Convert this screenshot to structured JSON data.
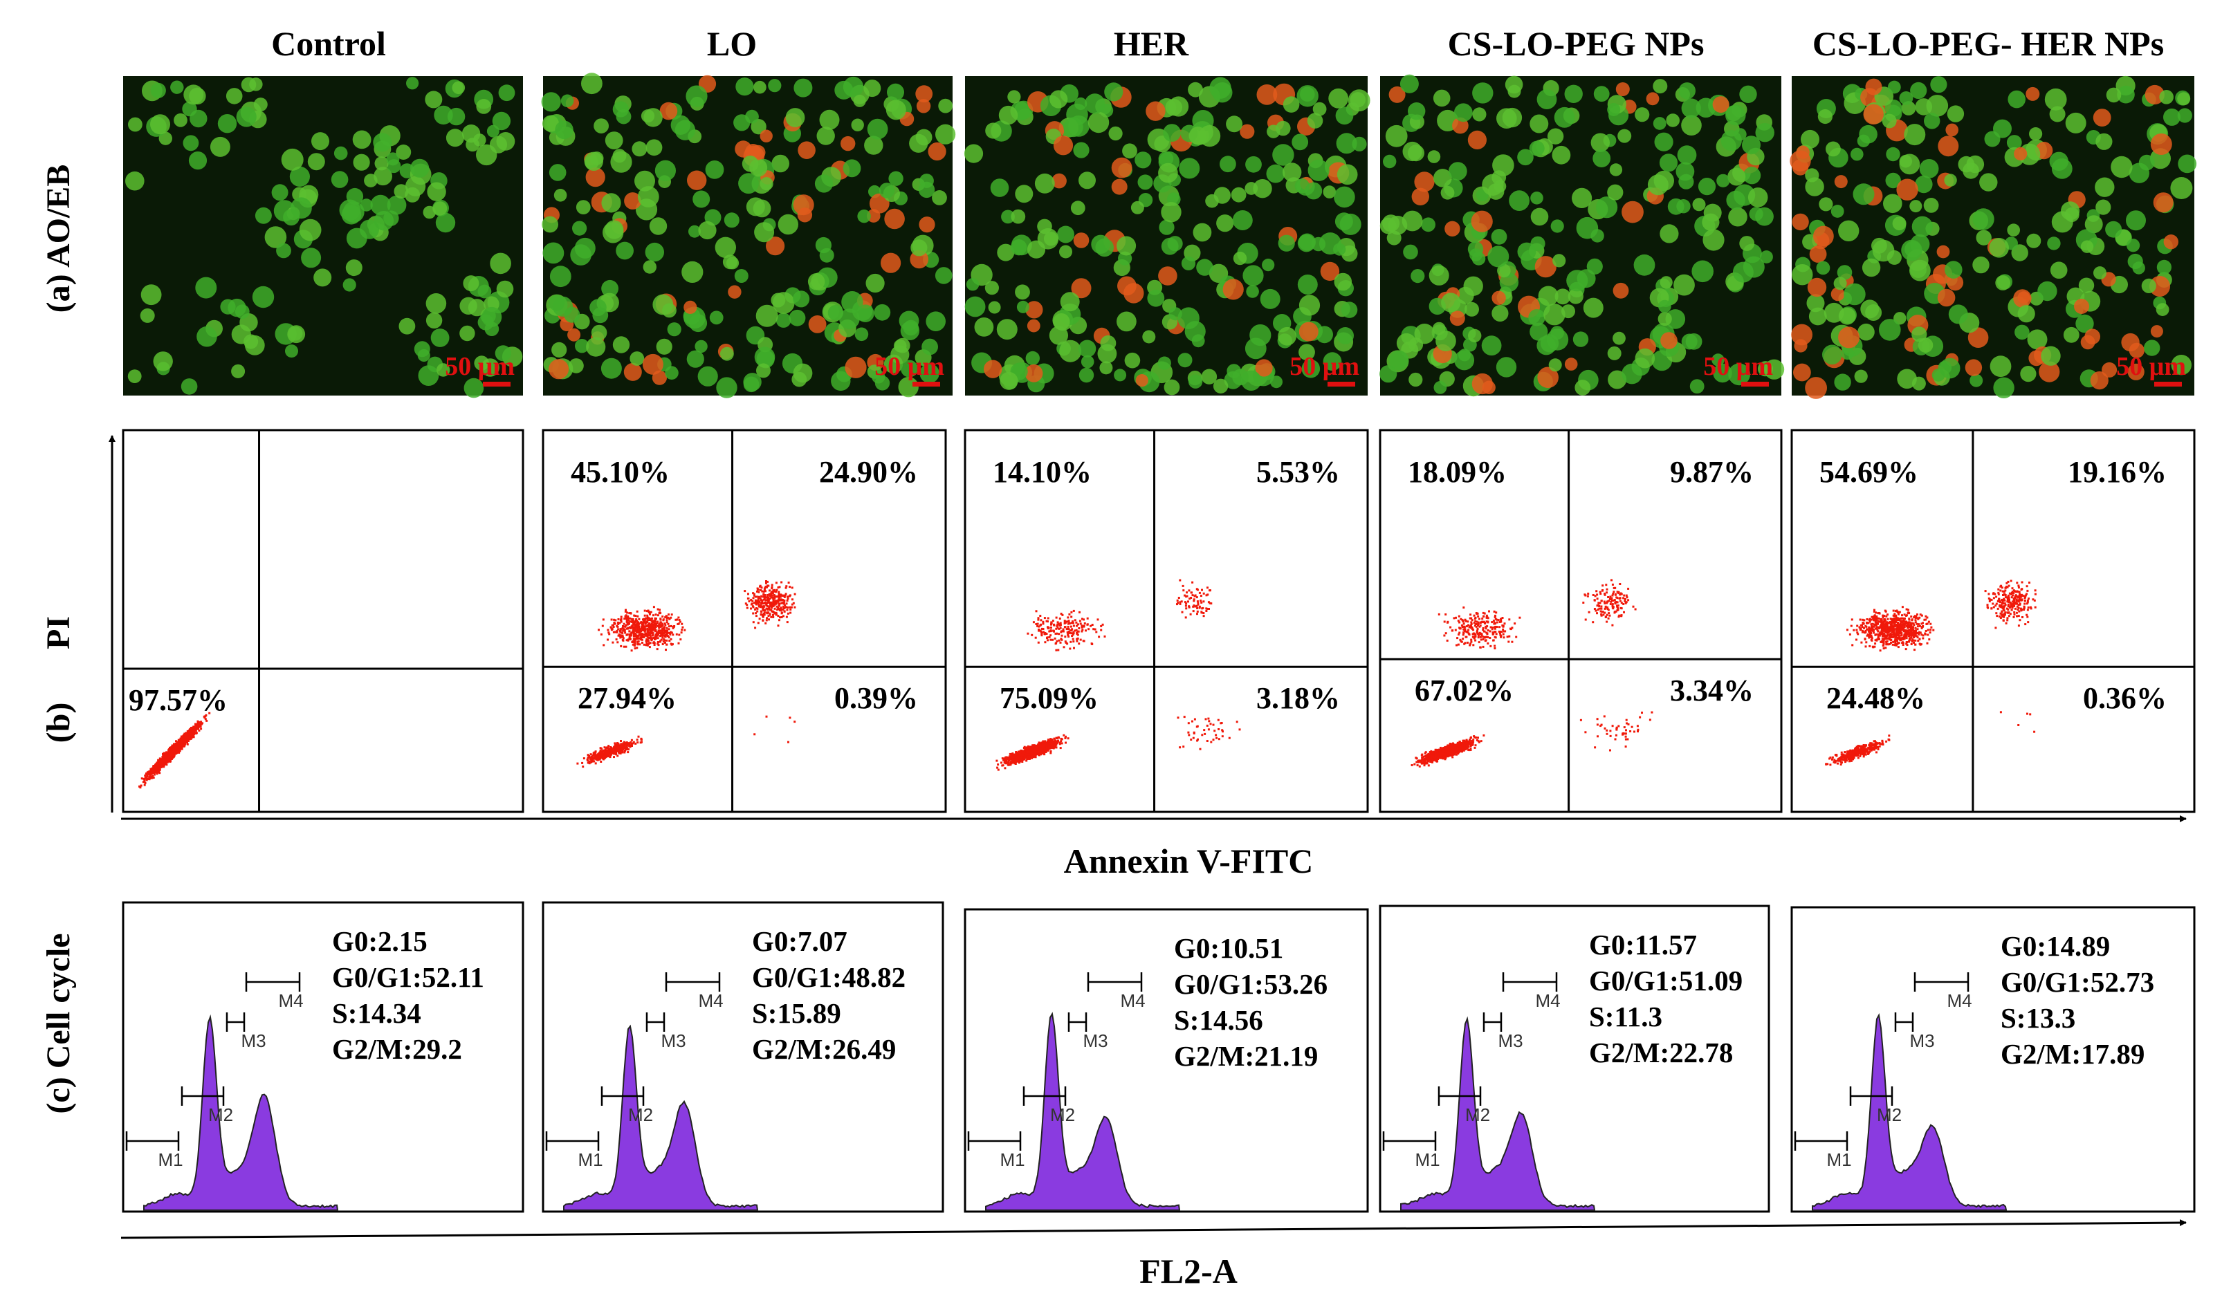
{
  "columns": [
    "Control",
    "LO",
    "HER",
    "CS-LO-PEG NPs",
    "CS-LO-PEG- HER NPs"
  ],
  "row_labels": {
    "a": "(a) AO/EB",
    "b_prefix": "(b)",
    "b_label": "PI",
    "c": "(c)  Cell cycle"
  },
  "x_axis_labels": {
    "annexin": "Annexin V-FITC",
    "fl2": "FL2-A"
  },
  "scale_bar": "50 μm",
  "histogram_markers": [
    "M1",
    "M2",
    "M3",
    "M4"
  ],
  "colors": {
    "live_green": "#3fae2a",
    "dead_orange": "#e25a1c",
    "scale_red": "#e01010",
    "dot_red": "#f0190a",
    "histogram_purple": "#8a3be0"
  },
  "chart_data": [
    {
      "type": "scatter",
      "title": "",
      "xlabel": "Annexin V-FITC",
      "ylabel": "PI",
      "panels": [
        {
          "name": "Control",
          "q_upper_left": "",
          "q_upper_right": "",
          "q_lower_left": "97.57%",
          "q_lower_right": ""
        },
        {
          "name": "LO",
          "q_upper_left": "45.10%",
          "q_upper_right": "24.90%",
          "q_lower_left": "27.94%",
          "q_lower_right": "0.39%"
        },
        {
          "name": "HER",
          "q_upper_left": "14.10%",
          "q_upper_right": "5.53%",
          "q_lower_left": "75.09%",
          "q_lower_right": "3.18%"
        },
        {
          "name": "CS-LO-PEG NPs",
          "q_upper_left": "18.09%",
          "q_upper_right": "9.87%",
          "q_lower_left": "67.02%",
          "q_lower_right": "3.34%"
        },
        {
          "name": "CS-LO-PEG- HER NPs",
          "q_upper_left": "54.69%",
          "q_upper_right": "19.16%",
          "q_lower_left": "24.48%",
          "q_lower_right": "0.36%"
        }
      ]
    },
    {
      "type": "area",
      "title": "",
      "xlabel": "FL2-A",
      "ylabel": "Cell cycle",
      "panels": [
        {
          "name": "Control",
          "lines": [
            "G0:2.15",
            "G0/G1:52.11",
            "S:14.34",
            "G2/M:29.2"
          ]
        },
        {
          "name": "LO",
          "lines": [
            "G0:7.07",
            "G0/G1:48.82",
            "S:15.89",
            "G2/M:26.49"
          ]
        },
        {
          "name": "HER",
          "lines": [
            "G0:10.51",
            "G0/G1:53.26",
            "S:14.56",
            "G2/M:21.19"
          ]
        },
        {
          "name": "CS-LO-PEG NPs",
          "lines": [
            "G0:11.57",
            "G0/G1:51.09",
            "S:11.3",
            "G2/M:22.78"
          ]
        },
        {
          "name": "CS-LO-PEG- HER NPs",
          "lines": [
            "G0:14.89",
            "G0/G1:52.73",
            "S:13.3",
            "G2/M:17.89"
          ]
        }
      ]
    }
  ]
}
